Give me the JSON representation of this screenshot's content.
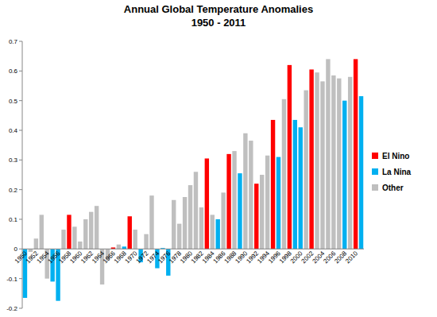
{
  "chart_data": {
    "type": "bar",
    "title": "Annual Global Temperature Anomalies",
    "subtitle": "1950 - 2011",
    "categories": [
      "1950",
      null,
      "1952",
      null,
      "1954",
      null,
      "1956",
      null,
      "1958",
      null,
      "1960",
      null,
      "1962",
      null,
      "1964",
      null,
      "1966",
      null,
      "1968",
      null,
      "1970",
      null,
      "1972",
      null,
      "1974",
      null,
      "1976",
      null,
      "1978",
      null,
      "1980",
      null,
      "1982",
      null,
      "1984",
      null,
      "1986",
      null,
      "1988",
      null,
      "1990",
      null,
      "1992",
      null,
      "1994",
      null,
      "1996",
      null,
      "1998",
      null,
      "2000",
      null,
      "2002",
      null,
      "2004",
      null,
      "2006",
      null,
      "2008",
      null,
      "2010",
      null
    ],
    "series": [
      {
        "name": "El Nino",
        "color": "#ff0000",
        "values": [
          null,
          null,
          null,
          null,
          null,
          null,
          null,
          null,
          0.115,
          null,
          null,
          null,
          null,
          null,
          null,
          null,
          0.005,
          null,
          null,
          0.11,
          null,
          null,
          null,
          null,
          null,
          null,
          null,
          null,
          null,
          null,
          null,
          null,
          null,
          0.305,
          null,
          null,
          null,
          0.32,
          null,
          null,
          null,
          null,
          0.22,
          null,
          null,
          0.435,
          null,
          null,
          0.62,
          null,
          null,
          null,
          0.605,
          null,
          null,
          null,
          null,
          null,
          null,
          null,
          0.64,
          null
        ]
      },
      {
        "name": "La Nina",
        "color": "#00b0f0",
        "values": [
          -0.165,
          null,
          null,
          null,
          null,
          -0.11,
          -0.175,
          null,
          null,
          null,
          null,
          null,
          null,
          null,
          null,
          null,
          null,
          null,
          0.008,
          null,
          null,
          -0.045,
          null,
          null,
          -0.065,
          0.003,
          -0.09,
          null,
          null,
          null,
          null,
          null,
          null,
          null,
          null,
          0.1,
          null,
          null,
          null,
          0.255,
          null,
          null,
          null,
          null,
          null,
          null,
          0.31,
          null,
          null,
          0.435,
          0.41,
          null,
          null,
          null,
          null,
          null,
          null,
          null,
          0.5,
          null,
          null,
          0.515
        ]
      },
      {
        "name": "Other",
        "color": "#bfbfbf",
        "values": [
          null,
          -0.01,
          0.035,
          0.115,
          -0.1,
          null,
          null,
          0.065,
          null,
          0.075,
          0.025,
          0.1,
          0.125,
          0.145,
          -0.12,
          -0.04,
          null,
          0.015,
          null,
          null,
          0.065,
          null,
          0.05,
          0.18,
          null,
          null,
          null,
          0.165,
          0.085,
          0.175,
          0.215,
          0.26,
          0.14,
          null,
          0.115,
          null,
          0.19,
          null,
          0.33,
          null,
          0.39,
          0.365,
          null,
          0.25,
          0.315,
          null,
          null,
          0.505,
          null,
          null,
          null,
          0.535,
          null,
          0.595,
          0.565,
          0.64,
          0.585,
          0.575,
          null,
          0.58,
          null,
          null
        ]
      }
    ],
    "ylim": [
      -0.2,
      0.7
    ],
    "yticks": [
      -0.2,
      -0.1,
      0,
      0.1,
      0.2,
      0.3,
      0.4,
      0.5,
      0.6,
      0.7
    ],
    "grid": false,
    "legend": "right"
  }
}
